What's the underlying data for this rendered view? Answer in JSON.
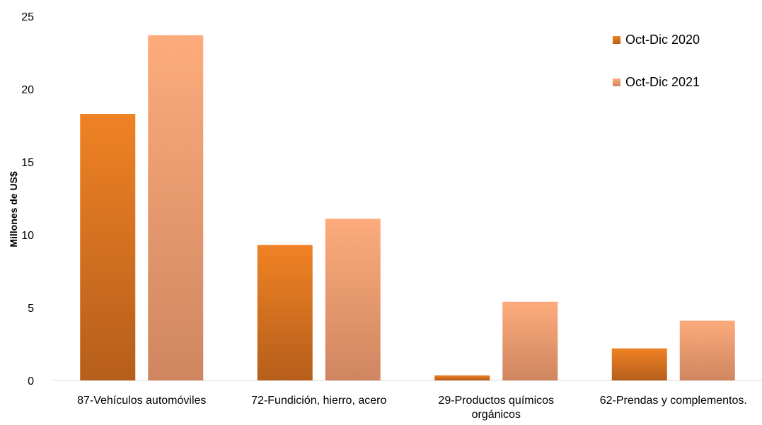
{
  "chart_data": {
    "type": "bar",
    "ylabel": "Millones de US$",
    "ylim": [
      0,
      25
    ],
    "yticks": [
      0,
      5,
      10,
      15,
      20,
      25
    ],
    "grid": false,
    "legend_position": "top-right",
    "categories": [
      [
        "87-Vehículos automóviles"
      ],
      [
        "72-Fundición, hierro, acero"
      ],
      [
        "29-Productos químicos",
        "orgánicos"
      ],
      [
        "62-Prendas y complementos."
      ]
    ],
    "series": [
      {
        "name": "Oct-Dic 2020",
        "values": [
          18.3,
          9.3,
          0.35,
          2.2
        ],
        "color_top": "#f08224",
        "color_bottom": "#b55e1b"
      },
      {
        "name": "Oct-Dic 2021",
        "values": [
          23.7,
          11.1,
          5.4,
          4.1
        ],
        "color_top": "#fdab7c",
        "color_bottom": "#cf8660"
      }
    ]
  }
}
